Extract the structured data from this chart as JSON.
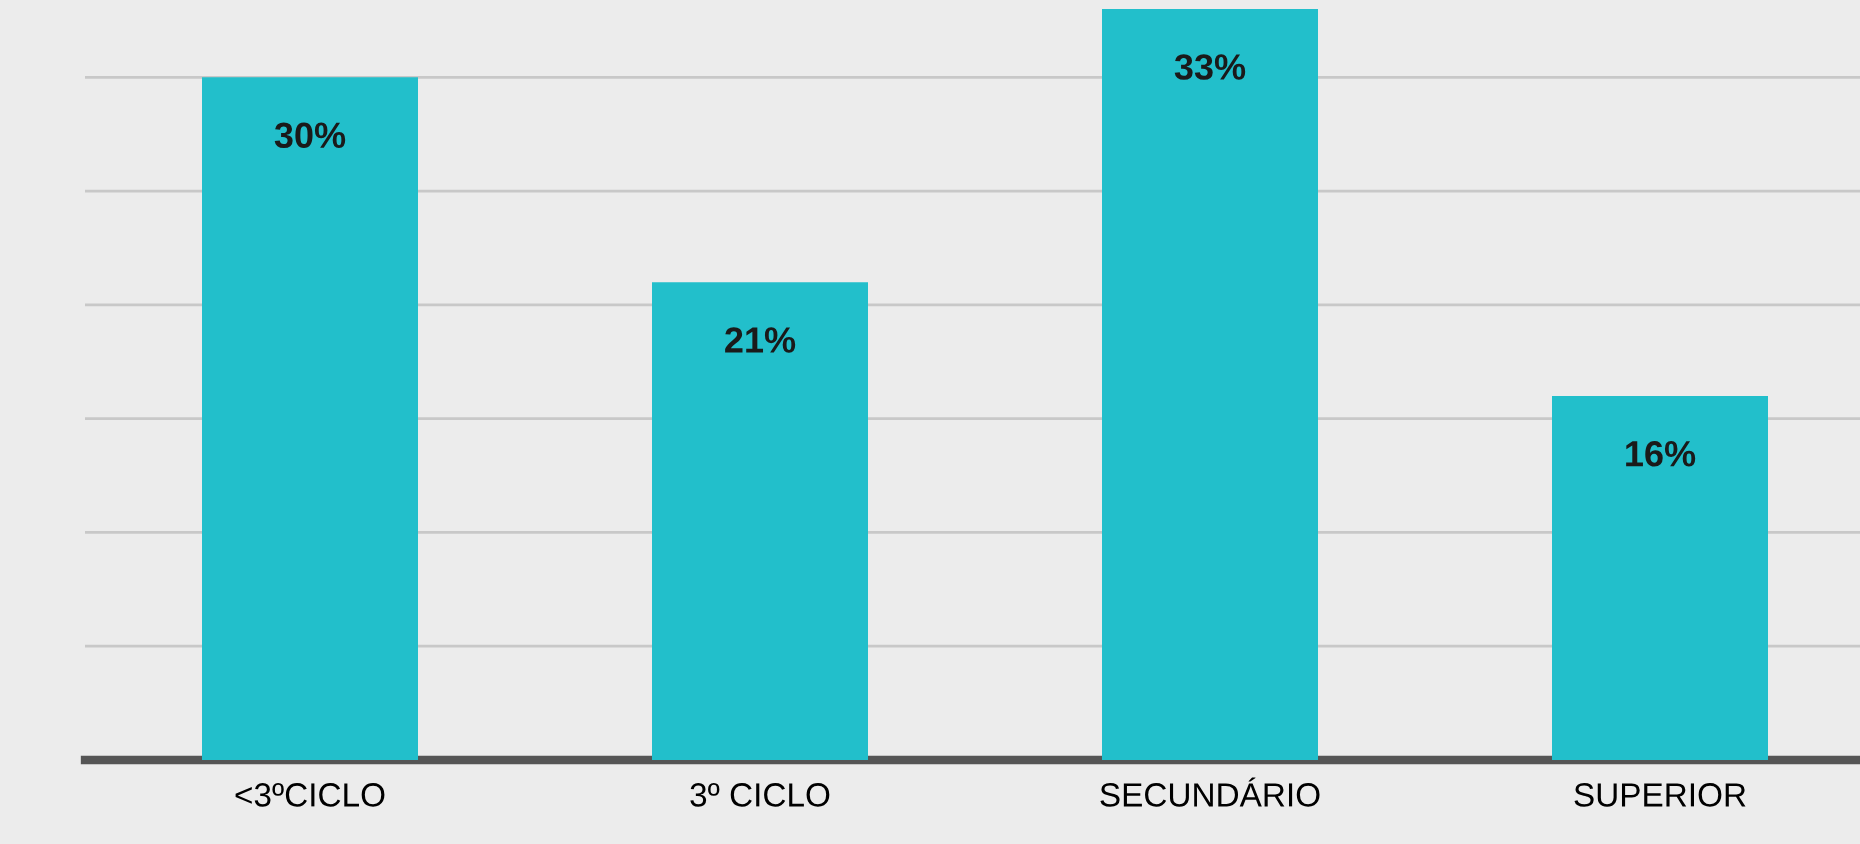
{
  "chart_data": {
    "type": "bar",
    "categories": [
      "<3ºCICLO",
      "3º CICLO",
      "SECUNDÁRIO",
      "SUPERIOR"
    ],
    "values": [
      30,
      21,
      33,
      16
    ],
    "color": "#22bfcb",
    "data_labels": true,
    "value_labels": [
      "30%",
      "21%",
      "33%",
      "16%"
    ],
    "ylim": [
      0,
      33.4
    ],
    "yticks": [
      {
        "value": 5,
        "label": null
      },
      {
        "value": 10,
        "label": null
      },
      {
        "value": 15,
        "label": null
      },
      {
        "value": 20,
        "label": null
      },
      {
        "value": 25,
        "label": null
      },
      {
        "value": 30,
        "label": null
      }
    ],
    "grid": "y",
    "tick_labels": "x"
  }
}
